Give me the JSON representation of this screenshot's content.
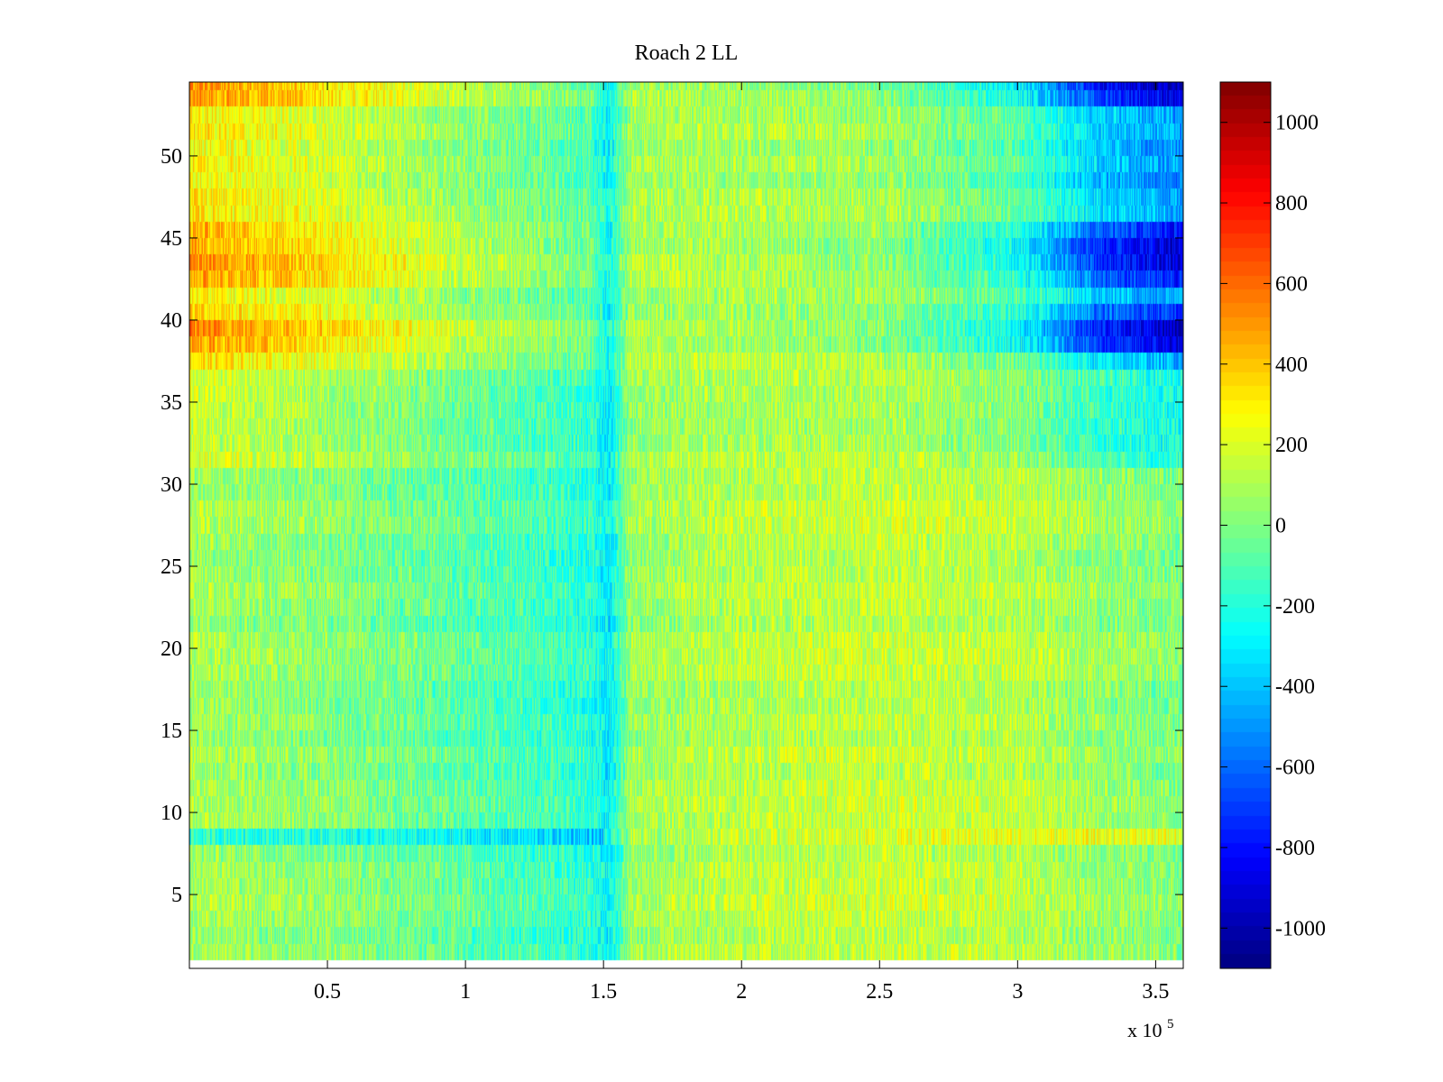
{
  "chart_data": {
    "type": "heatmap",
    "title": "Roach 2 LL",
    "xlabel": "",
    "ylabel": "",
    "x_multiplier_label": "x 10",
    "x_multiplier_exponent": "5",
    "xlim": [
      0,
      3.6
    ],
    "ylim": [
      0.5,
      54.5
    ],
    "x_ticks": [
      0.5,
      1,
      1.5,
      2,
      2.5,
      3,
      3.5
    ],
    "x_tick_labels": [
      "0.5",
      "1",
      "1.5",
      "2",
      "2.5",
      "3",
      "3.5"
    ],
    "y_ticks": [
      5,
      10,
      15,
      20,
      25,
      30,
      35,
      40,
      45,
      50
    ],
    "y_tick_labels": [
      "5",
      "10",
      "15",
      "20",
      "25",
      "30",
      "35",
      "40",
      "45",
      "50"
    ],
    "n_rows": 54,
    "colormap": "jet",
    "colorbar": {
      "range": [
        -1100,
        1100
      ],
      "ticks": [
        1000,
        800,
        600,
        400,
        200,
        0,
        -200,
        -400,
        -600,
        -800,
        -1000
      ],
      "tick_labels": [
        "1000",
        "800",
        "600",
        "400",
        "200",
        "0",
        "-200",
        "-400",
        "-600",
        "-800",
        "-1000"
      ]
    },
    "approx_pattern": {
      "description_points_x": [
        0,
        0.5,
        1.0,
        1.45,
        1.52,
        1.6,
        2.0,
        2.5,
        3.0,
        3.3,
        3.6
      ],
      "low_rows_mean": [
        80,
        20,
        -80,
        -180,
        -300,
        60,
        120,
        150,
        120,
        50,
        0
      ],
      "upper_rows_37_54_mean": [
        480,
        320,
        120,
        -20,
        -250,
        100,
        80,
        20,
        -250,
        -700,
        -900
      ]
    }
  }
}
